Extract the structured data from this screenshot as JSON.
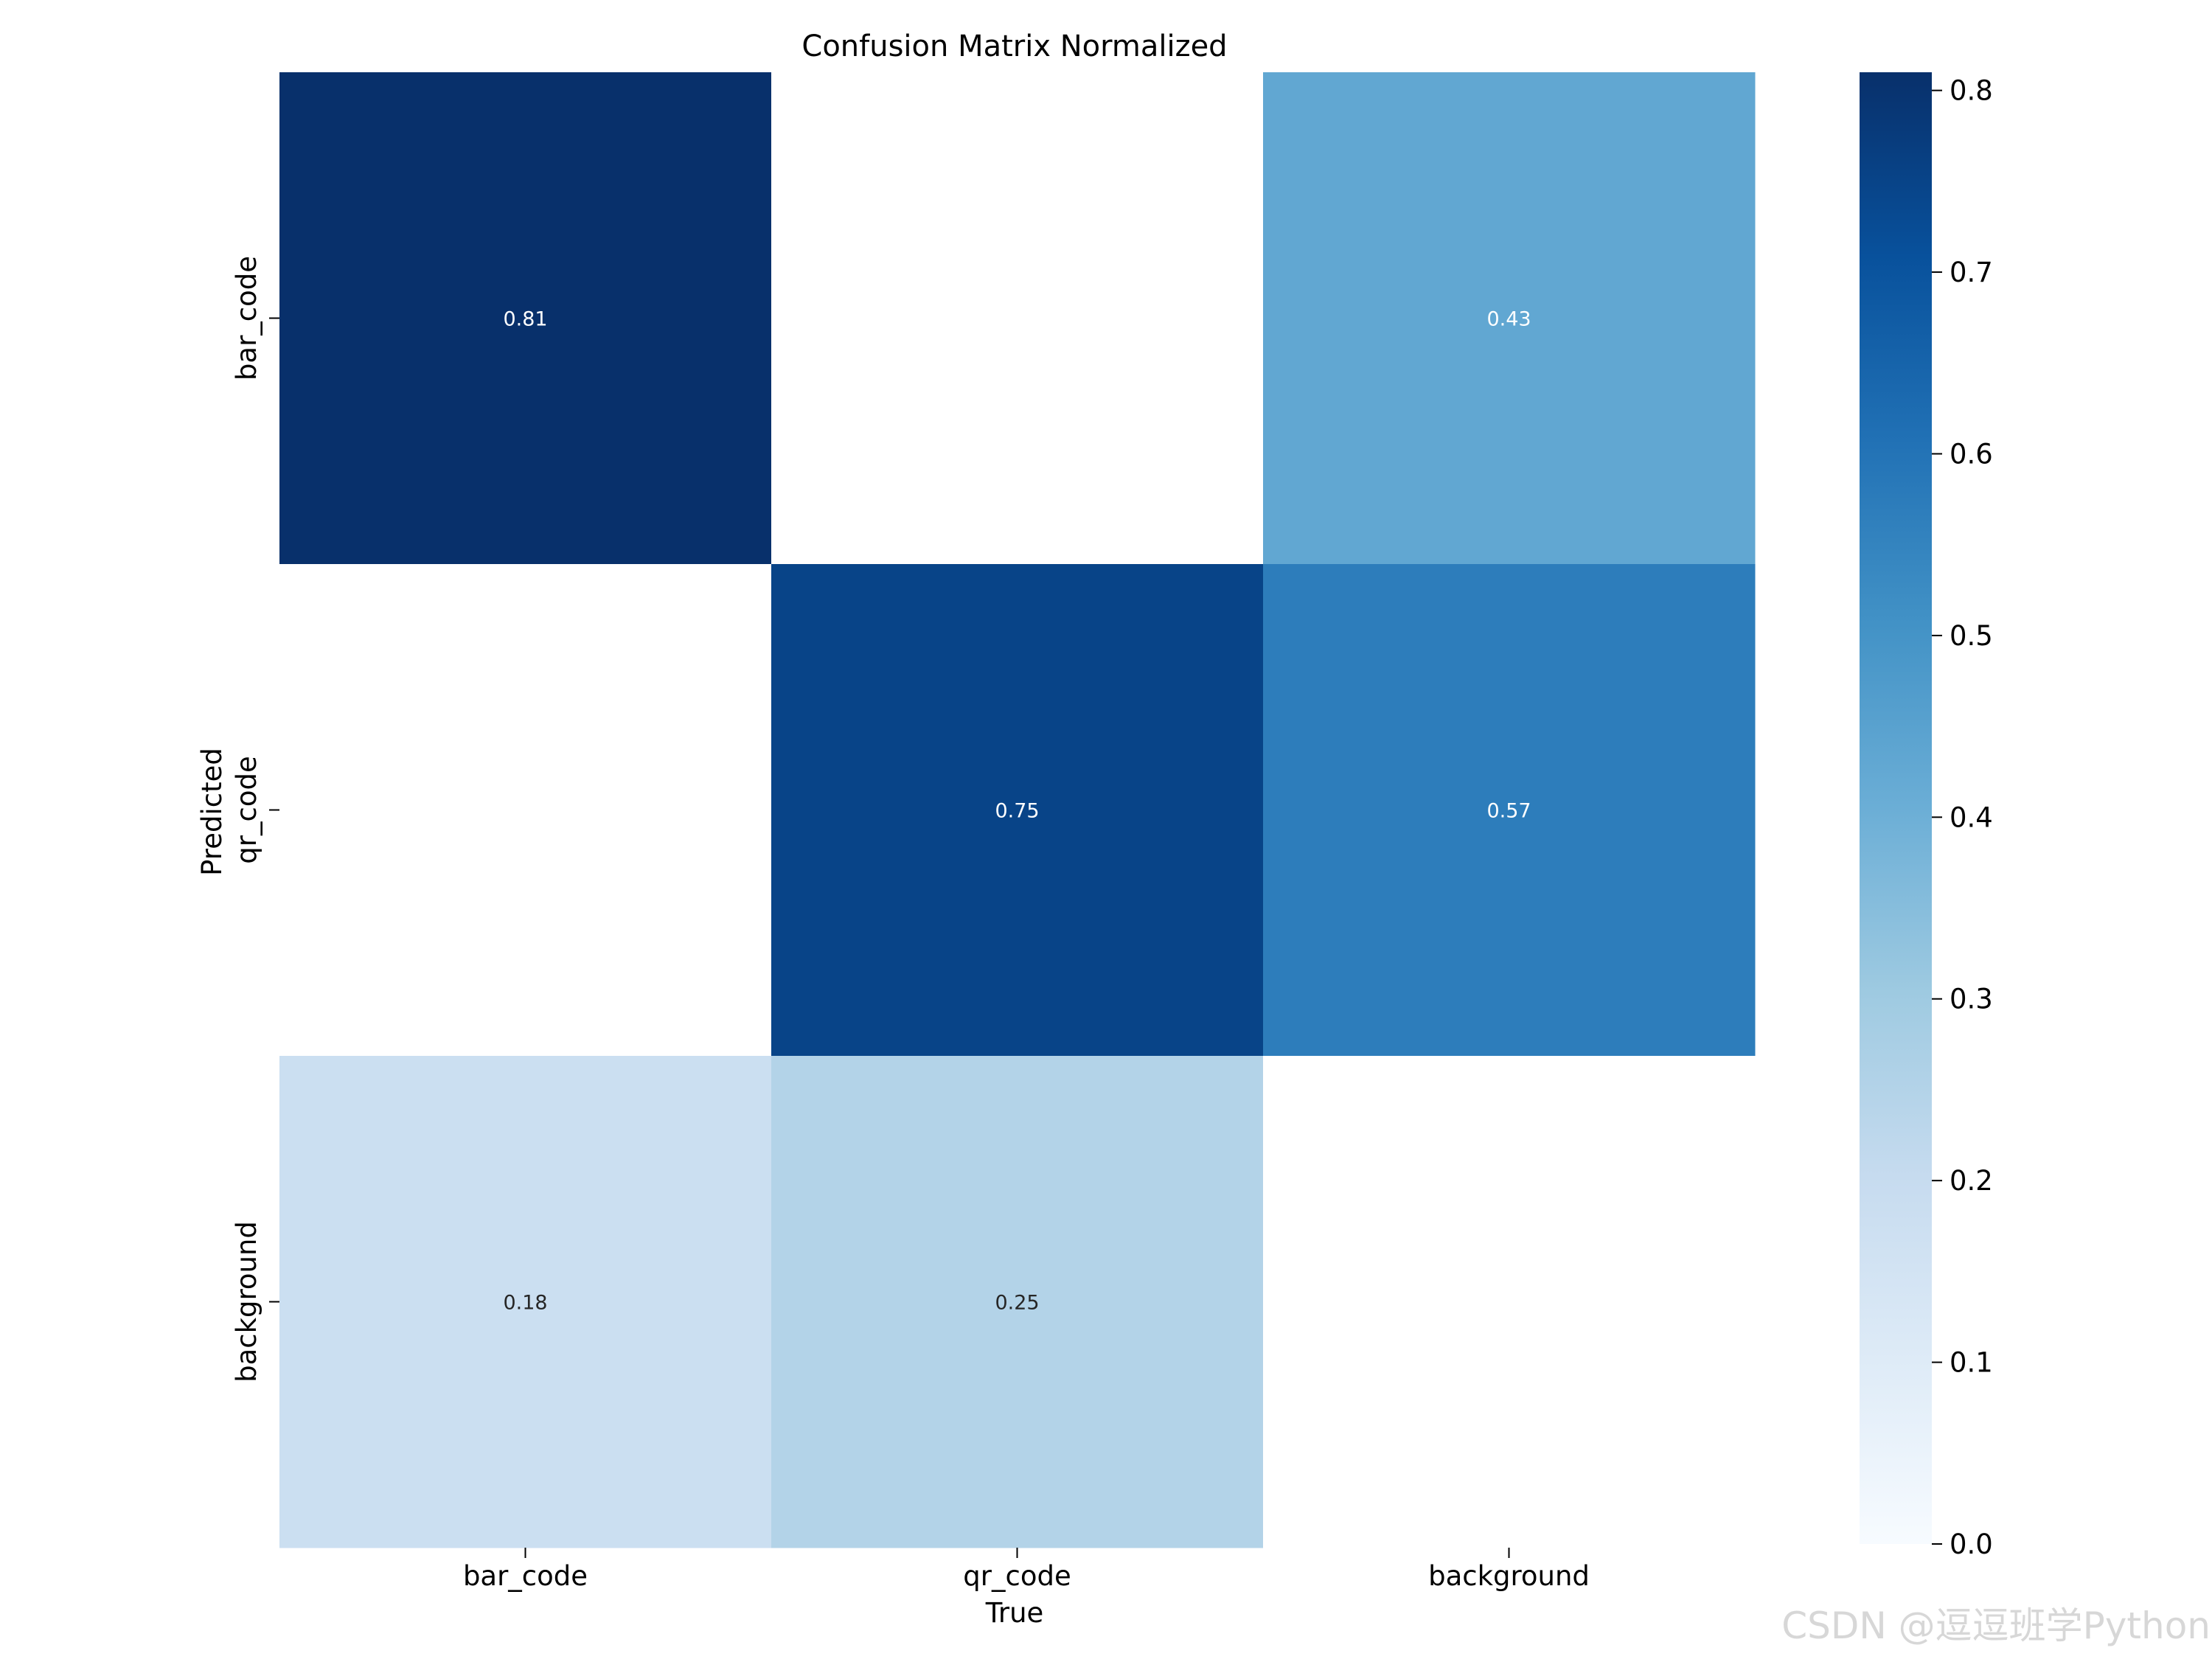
{
  "chart_data": {
    "type": "heatmap",
    "title": "Confusion Matrix Normalized",
    "xlabel": "True",
    "ylabel": "Predicted",
    "x_categories": [
      "bar_code",
      "qr_code",
      "background"
    ],
    "y_categories": [
      "bar_code",
      "qr_code",
      "background"
    ],
    "values": [
      [
        0.81,
        null,
        0.43
      ],
      [
        null,
        0.75,
        0.57
      ],
      [
        0.18,
        0.25,
        null
      ]
    ],
    "value_labels": [
      [
        "0.81",
        "",
        "0.43"
      ],
      [
        "",
        "0.75",
        "0.57"
      ],
      [
        "0.18",
        "0.25",
        ""
      ]
    ],
    "colorbar": {
      "min": 0.0,
      "max": 0.81,
      "ticks": [
        0.0,
        0.1,
        0.2,
        0.3,
        0.4,
        0.5,
        0.6,
        0.7,
        0.8
      ],
      "tick_labels": [
        "0.0",
        "0.1",
        "0.2",
        "0.3",
        "0.4",
        "0.5",
        "0.6",
        "0.7",
        "0.8"
      ]
    },
    "colormap": [
      "#f7fbff",
      "#deebf7",
      "#c6dbef",
      "#9ecae1",
      "#6baed6",
      "#4292c6",
      "#2171b5",
      "#08519c",
      "#08306b"
    ],
    "empty_cell_color": "#ffffff",
    "grid": false
  },
  "watermark": "CSDN @逗逗班学Python"
}
